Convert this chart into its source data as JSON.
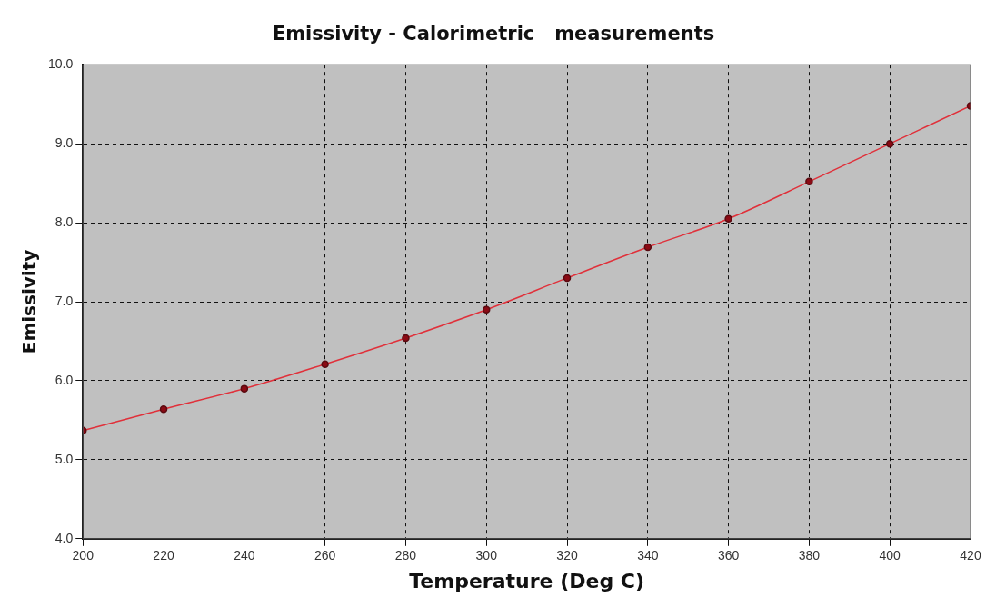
{
  "chart_data": {
    "type": "line",
    "title": "Emissivity - Calorimetric   measurements",
    "xlabel": "Temperature (Deg C)",
    "ylabel": "Emissivity",
    "x": [
      200,
      220,
      240,
      260,
      280,
      300,
      320,
      340,
      360,
      380,
      400,
      420
    ],
    "series": [
      {
        "color": "#e0303a",
        "values": [
          5.37,
          5.64,
          5.9,
          6.21,
          6.54,
          6.9,
          7.3,
          7.69,
          8.05,
          8.52,
          9.0,
          9.48
        ]
      }
    ],
    "xlim": [
      200,
      420
    ],
    "xticks": [
      200,
      220,
      240,
      260,
      280,
      300,
      320,
      340,
      360,
      380,
      400,
      420
    ],
    "ylim": [
      4,
      10
    ],
    "yticks": [
      {
        "value": 4,
        "label": "4.0"
      },
      {
        "value": 5,
        "label": "5.0"
      },
      {
        "value": 6,
        "label": "6.0"
      },
      {
        "value": 7,
        "label": "7.0"
      },
      {
        "value": 8,
        "label": "8.0"
      },
      {
        "value": 9,
        "label": "9.0"
      },
      {
        "value": 10,
        "label": "10.0"
      }
    ],
    "grid": true,
    "legend": false,
    "marker": "circle",
    "line_style": "solid"
  }
}
